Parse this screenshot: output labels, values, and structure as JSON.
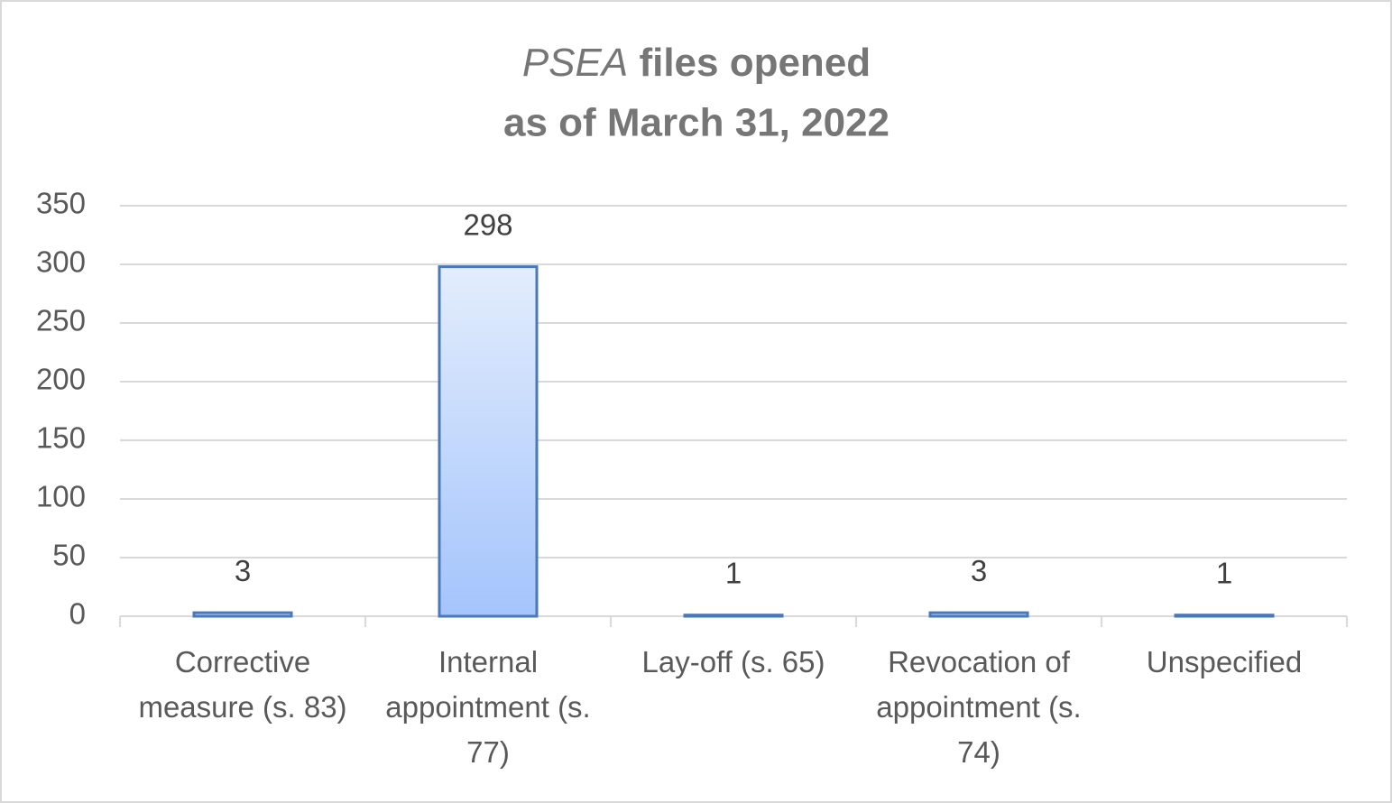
{
  "chart_data": {
    "type": "bar",
    "title": [
      "PSEA files opened",
      "as of March 31, 2022"
    ],
    "categories": [
      "Corrective measure (s. 83)",
      "Internal appointment (s. 77)",
      "Lay-off (s. 65)",
      "Revocation of appointment (s. 74)",
      "Unspecified"
    ],
    "values": [
      3,
      298,
      1,
      3,
      1
    ],
    "color": "#a4c4fc",
    "ylim": [
      0,
      350
    ],
    "yticks": [
      0,
      50,
      100,
      150,
      200,
      250,
      300,
      350
    ],
    "grid": true
  }
}
